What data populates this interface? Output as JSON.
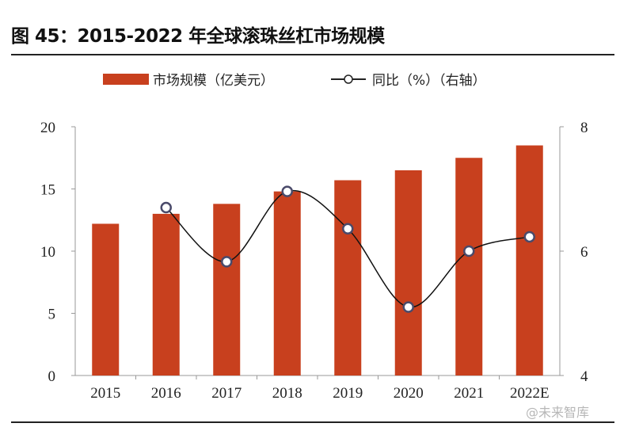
{
  "chart_data": {
    "type": "bar+line",
    "title": "图 45：2015-2022 年全球滚珠丝杠市场规模",
    "categories": [
      "2015",
      "2016",
      "2017",
      "2018",
      "2019",
      "2020",
      "2021",
      "2022E"
    ],
    "series": [
      {
        "name": "市场规模（亿美元）",
        "type": "bar",
        "axis": "left",
        "color": "#c8401e",
        "values": [
          12.2,
          13.0,
          13.8,
          14.8,
          15.7,
          16.5,
          17.5,
          18.5
        ]
      },
      {
        "name": "同比（%）（右轴）",
        "type": "line",
        "axis": "right",
        "color": "#111111",
        "smooth": true,
        "values": [
          null,
          6.7,
          5.83,
          6.96,
          6.36,
          5.1,
          6.0,
          6.23
        ]
      }
    ],
    "y_left": {
      "lim": [
        0,
        20
      ],
      "ticks": [
        "0",
        "5",
        "10",
        "15",
        "20"
      ]
    },
    "y_right": {
      "lim": [
        4,
        8
      ],
      "ticks": [
        "4",
        "6",
        "8"
      ]
    },
    "grid": false,
    "legend": "top"
  },
  "watermark": "@未来智库"
}
